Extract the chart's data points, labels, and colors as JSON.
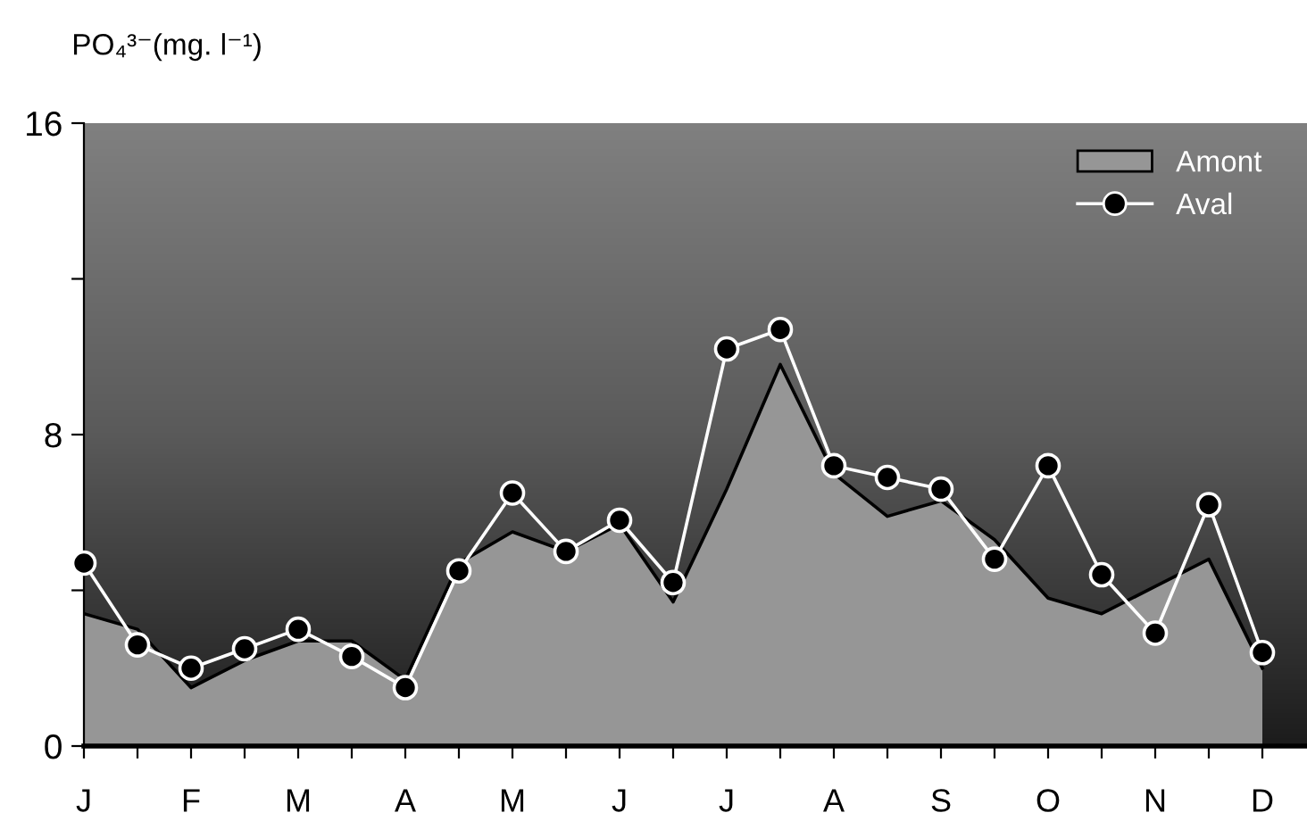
{
  "chart_data": {
    "type": "area",
    "ylabel": "PO₄³⁻(mg. l⁻¹)",
    "categories": [
      "J",
      null,
      "F",
      null,
      "M",
      null,
      "A",
      null,
      "M",
      null,
      "J",
      null,
      "J",
      null,
      "A",
      null,
      "S",
      null,
      "O",
      null,
      "N",
      null,
      "D"
    ],
    "series": [
      {
        "name": "Amont",
        "color": "#969696",
        "values": [
          3.4,
          3.0,
          1.5,
          2.2,
          2.7,
          2.7,
          1.7,
          4.7,
          5.5,
          5.0,
          5.7,
          3.7,
          6.6,
          9.8,
          7.0,
          5.9,
          6.3,
          5.3,
          3.8,
          3.4,
          4.1,
          4.8,
          2.0
        ]
      },
      {
        "name": "Aval",
        "type": "line",
        "color": "#ffffff",
        "marker": "circle",
        "values": [
          4.7,
          2.6,
          2.0,
          2.5,
          3.0,
          2.3,
          1.5,
          4.5,
          6.5,
          5.0,
          5.8,
          4.2,
          10.2,
          10.7,
          7.2,
          6.9,
          6.6,
          4.8,
          7.2,
          4.4,
          2.9,
          6.2,
          2.4
        ]
      }
    ],
    "ylim": [
      0,
      16
    ],
    "yticks": [
      0,
      {
        "value": 4,
        "label": null
      },
      8,
      {
        "value": 12,
        "label": null
      },
      16
    ],
    "legend": "top right",
    "grid": false
  }
}
